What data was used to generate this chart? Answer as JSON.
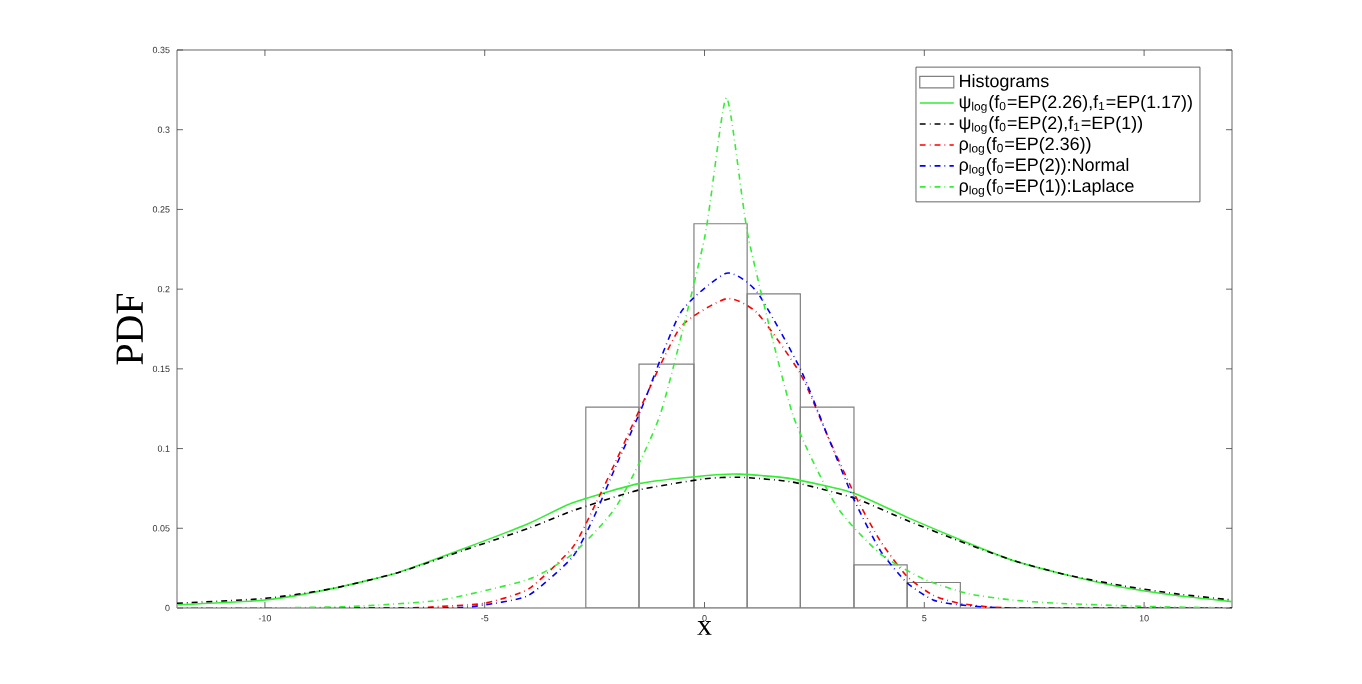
{
  "chart_data": {
    "type": "line",
    "xlabel": "x",
    "ylabel": "PDF",
    "xlim": [
      -12,
      12
    ],
    "ylim": [
      0,
      0.35
    ],
    "xticks": [
      -10,
      -5,
      0,
      5,
      10
    ],
    "yticks": [
      0,
      0.05,
      0.1,
      0.15,
      0.2,
      0.25,
      0.3,
      0.35
    ],
    "legend": "top right",
    "marker": "none",
    "grid": false,
    "series": [
      {
        "type": "histogram",
        "name": "Histograms",
        "color": "#808080",
        "bins": [
          -2.7,
          -1.49,
          -0.24,
          0.97,
          2.18,
          3.4,
          4.61,
          5.82
        ],
        "values": [
          0.126,
          0.153,
          0.241,
          0.197,
          0.126,
          0.027,
          0.016
        ]
      },
      {
        "name": "ψ$_{log}$(f$_{0}$=EP(2.26),f$_{1}$=EP(1.17))",
        "color": "#33ee33",
        "line_style": "solid",
        "x": [
          -12,
          -10,
          -8.5,
          -7,
          -5.5,
          -4,
          -3,
          -1.5,
          0,
          0.8,
          2,
          3.4,
          4.6,
          5.8,
          7,
          8.2,
          9.5,
          10.7,
          12
        ],
        "values": [
          0.002,
          0.005,
          0.012,
          0.022,
          0.037,
          0.053,
          0.066,
          0.078,
          0.083,
          0.084,
          0.081,
          0.072,
          0.057,
          0.043,
          0.03,
          0.021,
          0.013,
          0.008,
          0.004
        ]
      },
      {
        "name": "ψ$_{log}$(f$_{0}$=EP(2),f$_{1}$=EP(1))",
        "color": "#000000",
        "line_style": "dashed",
        "x": [
          -12,
          -10,
          -8.5,
          -7,
          -5.5,
          -4,
          -3,
          -1.5,
          0,
          0.8,
          2,
          3.4,
          4.6,
          5.8,
          7,
          8.2,
          9.5,
          10.7,
          12
        ],
        "values": [
          0.003,
          0.006,
          0.012,
          0.022,
          0.036,
          0.05,
          0.061,
          0.074,
          0.081,
          0.082,
          0.079,
          0.069,
          0.055,
          0.042,
          0.03,
          0.021,
          0.014,
          0.009,
          0.005
        ]
      },
      {
        "name": "ρ$_{log}$(f$_{0}$=EP(2.36))",
        "color": "#ff0000",
        "line_style": "dashed",
        "x": [
          -12,
          -7,
          -6,
          -5,
          -4,
          -3,
          -2.5,
          -2,
          -1.45,
          -0.55,
          0.5,
          1.2,
          2.18,
          2.8,
          3.4,
          4,
          4.6,
          5.2,
          5.8,
          7,
          12
        ],
        "values": [
          0,
          0,
          0.001,
          0.003,
          0.012,
          0.038,
          0.064,
          0.093,
          0.126,
          0.176,
          0.194,
          0.185,
          0.147,
          0.108,
          0.072,
          0.042,
          0.02,
          0.008,
          0.003,
          0,
          0
        ]
      },
      {
        "name": "ρ$_{log}$(f$_{0}$=EP(2)):Normal",
        "color": "#0000ff",
        "line_style": "dashed",
        "x": [
          -12,
          -6,
          -5,
          -4,
          -3,
          -2.5,
          -2,
          -1.45,
          -0.55,
          0.5,
          1.2,
          2.18,
          2.8,
          3.4,
          4,
          4.6,
          5.2,
          5.8,
          7,
          12
        ],
        "values": [
          0,
          0,
          0.002,
          0.008,
          0.032,
          0.058,
          0.09,
          0.124,
          0.185,
          0.21,
          0.198,
          0.15,
          0.108,
          0.068,
          0.036,
          0.016,
          0.005,
          0.002,
          0,
          0
        ]
      },
      {
        "name": "ρ$_{log}$(f$_{0}$=EP(1)):Laplace",
        "color": "#33ee33",
        "line_style": "dashed",
        "x": [
          -12,
          -10,
          -8,
          -6,
          -4,
          -3,
          -2,
          -1,
          0,
          0.5,
          1,
          2,
          3,
          4,
          5,
          6,
          7,
          8,
          10,
          12
        ],
        "values": [
          0,
          0,
          0.001,
          0.005,
          0.018,
          0.034,
          0.064,
          0.122,
          0.232,
          0.32,
          0.232,
          0.122,
          0.064,
          0.034,
          0.018,
          0.009,
          0.005,
          0.003,
          0.001,
          0
        ]
      }
    ]
  }
}
